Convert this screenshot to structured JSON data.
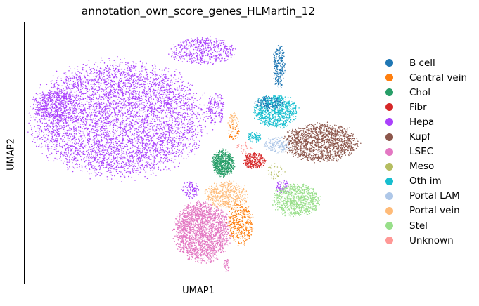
{
  "chart_data": {
    "type": "scatter",
    "title": "annotation_own_score_genes_HLMartin_12",
    "xlabel": "UMAP1",
    "ylabel": "UMAP2",
    "grid": false,
    "ticks": false,
    "legend_position": "right",
    "categories": [
      {
        "name": "B cell",
        "color": "#1f77b4"
      },
      {
        "name": "Central vein",
        "color": "#ff7f0e"
      },
      {
        "name": "Chol",
        "color": "#279e68"
      },
      {
        "name": "Fibr",
        "color": "#d62728"
      },
      {
        "name": "Hepa",
        "color": "#aa40fc"
      },
      {
        "name": "Kupf",
        "color": "#8c564b"
      },
      {
        "name": "LSEC",
        "color": "#e377c2"
      },
      {
        "name": "Meso",
        "color": "#b5bd61"
      },
      {
        "name": "Oth im",
        "color": "#17becf"
      },
      {
        "name": "Portal LAM",
        "color": "#aec7e8"
      },
      {
        "name": "Portal vein",
        "color": "#ffbb78"
      },
      {
        "name": "Stel",
        "color": "#98df8a"
      },
      {
        "name": "Unknown",
        "color": "#ff9896"
      }
    ],
    "xlim": [
      0,
      100
    ],
    "ylim": [
      0,
      100
    ],
    "clusters": [
      {
        "category": "Hepa",
        "cx": 27,
        "cy": 63,
        "rx": 24,
        "ry": 21,
        "n": 5200
      },
      {
        "category": "Hepa",
        "cx": 9,
        "cy": 68,
        "rx": 6,
        "ry": 6,
        "n": 420
      },
      {
        "category": "Hepa",
        "cx": 51,
        "cy": 89,
        "rx": 9,
        "ry": 5,
        "n": 520
      },
      {
        "category": "Hepa",
        "cx": 55,
        "cy": 67,
        "rx": 2.5,
        "ry": 6,
        "n": 160
      },
      {
        "category": "Hepa",
        "cx": 47.5,
        "cy": 36,
        "rx": 2.5,
        "ry": 3,
        "n": 90
      },
      {
        "category": "Hepa",
        "cx": 74,
        "cy": 37,
        "rx": 2.2,
        "ry": 2.5,
        "n": 60
      },
      {
        "category": "LSEC",
        "cx": 51,
        "cy": 20,
        "rx": 7.5,
        "ry": 11,
        "n": 2100
      },
      {
        "category": "LSEC",
        "cx": 58,
        "cy": 7,
        "rx": 0.8,
        "ry": 2.5,
        "n": 40
      },
      {
        "category": "Portal vein",
        "cx": 58,
        "cy": 34,
        "rx": 6,
        "ry": 5,
        "n": 480
      },
      {
        "category": "Portal vein",
        "cx": 60,
        "cy": 62,
        "rx": 1.5,
        "ry": 3,
        "n": 60
      },
      {
        "category": "Central vein",
        "cx": 62,
        "cy": 23,
        "rx": 3.5,
        "ry": 8,
        "n": 380
      },
      {
        "category": "Central vein",
        "cx": 60,
        "cy": 58,
        "rx": 1.5,
        "ry": 3,
        "n": 50
      },
      {
        "category": "Chol",
        "cx": 57,
        "cy": 46,
        "rx": 3,
        "ry": 5,
        "n": 620
      },
      {
        "category": "Fibr",
        "cx": 66,
        "cy": 47,
        "rx": 3,
        "ry": 3,
        "n": 260
      },
      {
        "category": "Oth im",
        "cx": 72,
        "cy": 66,
        "rx": 6,
        "ry": 6,
        "n": 880
      },
      {
        "category": "Oth im",
        "cx": 66,
        "cy": 56,
        "rx": 2,
        "ry": 2,
        "n": 90
      },
      {
        "category": "B cell",
        "cx": 73,
        "cy": 83,
        "rx": 1.6,
        "ry": 8,
        "n": 260
      },
      {
        "category": "B cell",
        "cx": 70,
        "cy": 69,
        "rx": 4,
        "ry": 2.5,
        "n": 160
      },
      {
        "category": "Kupf",
        "cx": 85,
        "cy": 54,
        "rx": 10,
        "ry": 7,
        "n": 1500
      },
      {
        "category": "Stel",
        "cx": 78,
        "cy": 32,
        "rx": 6.5,
        "ry": 6,
        "n": 820
      },
      {
        "category": "Portal LAM",
        "cx": 72.5,
        "cy": 53,
        "rx": 3.5,
        "ry": 3,
        "n": 150
      },
      {
        "category": "Meso",
        "cx": 72,
        "cy": 43,
        "rx": 2.5,
        "ry": 3,
        "n": 40
      },
      {
        "category": "Unknown",
        "cx": 63,
        "cy": 52,
        "rx": 2,
        "ry": 2,
        "n": 25
      }
    ]
  }
}
